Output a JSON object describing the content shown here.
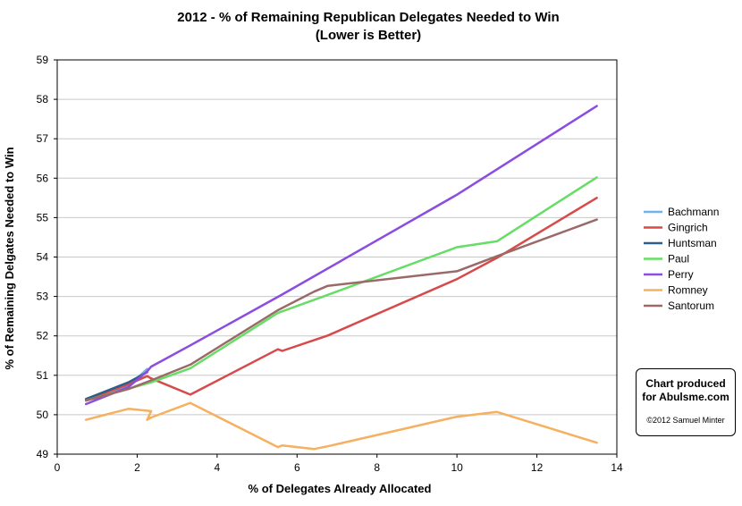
{
  "chart_data": {
    "type": "line",
    "title": "2012 - % of Remaining Republican Delegates Needed to Win",
    "subtitle": "(Lower is Better)",
    "xlabel": "% of Delegates Already Allocated",
    "ylabel": "% of Remaining Delgates Needed to Win",
    "xlim": [
      0,
      14
    ],
    "ylim": [
      49,
      59
    ],
    "x_ticks": [
      "0",
      "2",
      "4",
      "6",
      "8",
      "10",
      "12",
      "14"
    ],
    "y_ticks": [
      "49",
      "50",
      "51",
      "52",
      "53",
      "54",
      "55",
      "56",
      "57",
      "58",
      "59"
    ],
    "grid": "horizontal",
    "legend_position": "right",
    "series": [
      {
        "name": "Bachmann",
        "color": "#6fb3e8",
        "points": [
          [
            0.72,
            50.36
          ],
          [
            1.78,
            50.72
          ],
          [
            2.25,
            51.16
          ]
        ]
      },
      {
        "name": "Gingrich",
        "color": "#d64a4a",
        "points": [
          [
            0.72,
            50.37
          ],
          [
            1.78,
            50.77
          ],
          [
            2.25,
            50.98
          ],
          [
            2.35,
            50.92
          ],
          [
            3.33,
            50.51
          ],
          [
            5.52,
            51.66
          ],
          [
            5.63,
            51.62
          ],
          [
            6.77,
            52.01
          ],
          [
            10.0,
            53.44
          ],
          [
            11.0,
            53.98
          ],
          [
            13.5,
            55.5
          ]
        ]
      },
      {
        "name": "Huntsman",
        "color": "#2c5f8a",
        "points": [
          [
            0.72,
            50.4
          ],
          [
            1.78,
            50.82
          ],
          [
            2.25,
            51.08
          ]
        ]
      },
      {
        "name": "Paul",
        "color": "#66dd66",
        "points": [
          [
            0.72,
            50.36
          ],
          [
            1.78,
            50.66
          ],
          [
            2.35,
            50.82
          ],
          [
            3.33,
            51.18
          ],
          [
            5.52,
            52.58
          ],
          [
            6.77,
            53.04
          ],
          [
            10.0,
            54.25
          ],
          [
            11.0,
            54.4
          ],
          [
            13.5,
            56.02
          ]
        ]
      },
      {
        "name": "Perry",
        "color": "#8a4de0",
        "points": [
          [
            0.72,
            50.27
          ],
          [
            1.78,
            50.7
          ],
          [
            2.25,
            51.1
          ],
          [
            2.35,
            51.22
          ],
          [
            3.33,
            51.76
          ],
          [
            5.63,
            53.05
          ],
          [
            10.0,
            55.58
          ],
          [
            13.5,
            57.83
          ]
        ]
      },
      {
        "name": "Romney",
        "color": "#f5b060",
        "points": [
          [
            0.72,
            49.87
          ],
          [
            1.78,
            50.15
          ],
          [
            2.35,
            50.09
          ],
          [
            2.25,
            49.87
          ],
          [
            2.35,
            49.93
          ],
          [
            3.33,
            50.3
          ],
          [
            5.52,
            49.18
          ],
          [
            5.63,
            49.22
          ],
          [
            6.42,
            49.13
          ],
          [
            6.77,
            49.2
          ],
          [
            10.0,
            49.95
          ],
          [
            11.0,
            50.07
          ],
          [
            13.5,
            49.29
          ]
        ]
      },
      {
        "name": "Santorum",
        "color": "#9a6a68",
        "points": [
          [
            0.72,
            50.36
          ],
          [
            1.78,
            50.65
          ],
          [
            2.35,
            50.87
          ],
          [
            3.33,
            51.27
          ],
          [
            5.52,
            52.65
          ],
          [
            6.42,
            53.12
          ],
          [
            6.77,
            53.27
          ],
          [
            10.0,
            53.64
          ],
          [
            11.0,
            54.02
          ],
          [
            13.5,
            54.95
          ]
        ]
      }
    ]
  },
  "credit": {
    "line1": "Chart produced",
    "line2": "for Abulsme.com",
    "copyright": "©2012 Samuel Minter"
  }
}
